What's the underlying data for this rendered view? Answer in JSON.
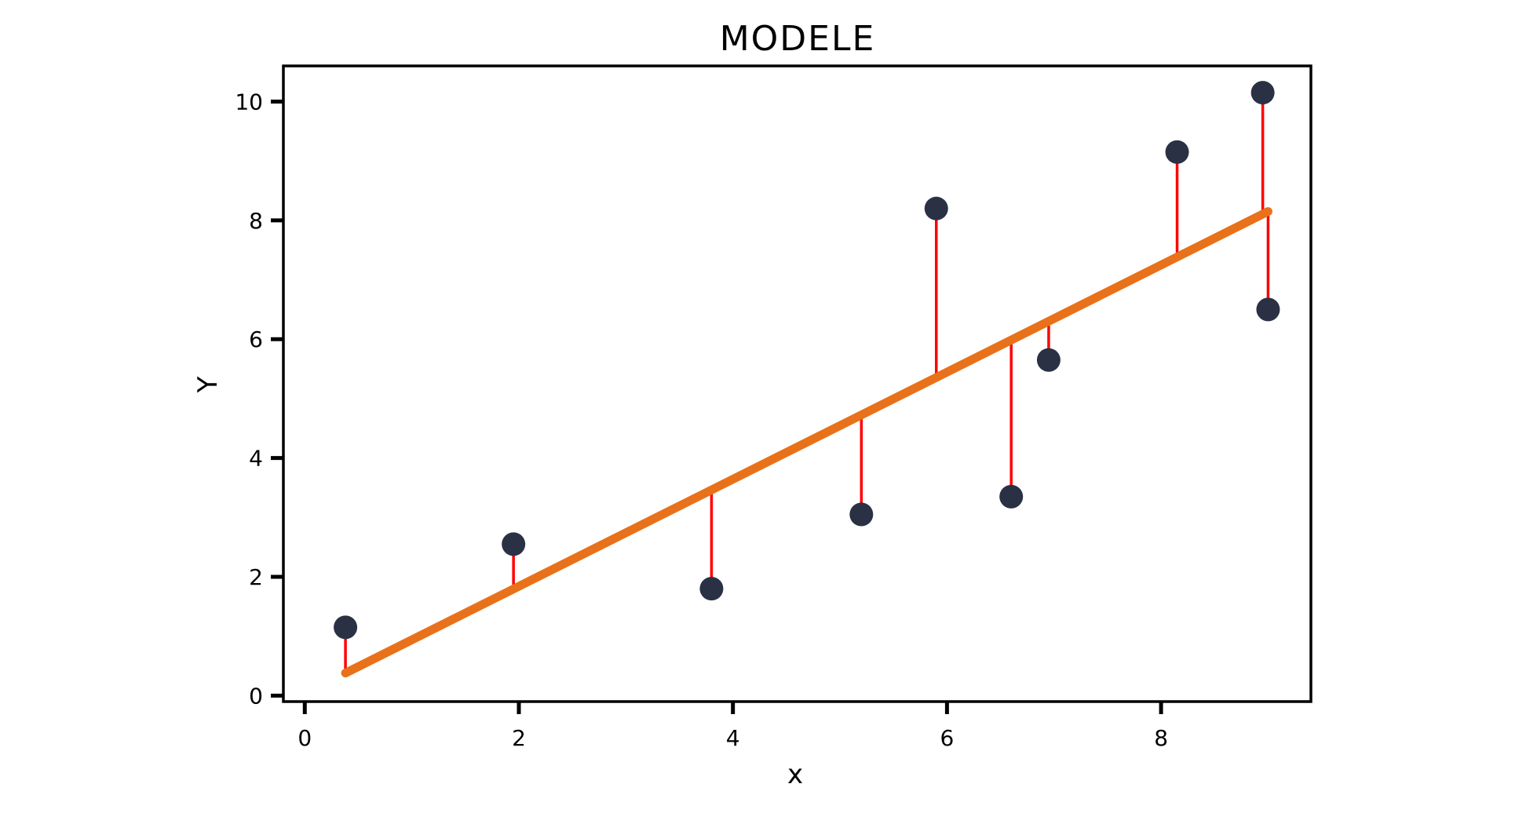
{
  "chart_data": {
    "type": "scatter",
    "title": "MODELE",
    "xlabel": "x",
    "ylabel": "Y",
    "xlim": [
      -0.2,
      9.4
    ],
    "ylim": [
      -0.1,
      10.6
    ],
    "xticks": [
      0,
      2,
      4,
      6,
      8
    ],
    "yticks": [
      0,
      2,
      4,
      6,
      8,
      10
    ],
    "grid": false,
    "series": [
      {
        "type": "scatter",
        "color": "#2a3144",
        "points": [
          {
            "x": 0.38,
            "y": 1.15
          },
          {
            "x": 1.95,
            "y": 2.55
          },
          {
            "x": 3.8,
            "y": 1.8
          },
          {
            "x": 5.2,
            "y": 3.05
          },
          {
            "x": 5.9,
            "y": 8.2
          },
          {
            "x": 6.6,
            "y": 3.35
          },
          {
            "x": 6.95,
            "y": 5.65
          },
          {
            "x": 8.15,
            "y": 9.15
          },
          {
            "x": 8.95,
            "y": 10.15
          },
          {
            "x": 9.0,
            "y": 6.5
          }
        ]
      },
      {
        "type": "line",
        "color": "#e8711a",
        "points": [
          {
            "x": 0.38,
            "y": 0.38
          },
          {
            "x": 9.0,
            "y": 8.15
          }
        ]
      }
    ],
    "residual_color": "#ff0000"
  }
}
